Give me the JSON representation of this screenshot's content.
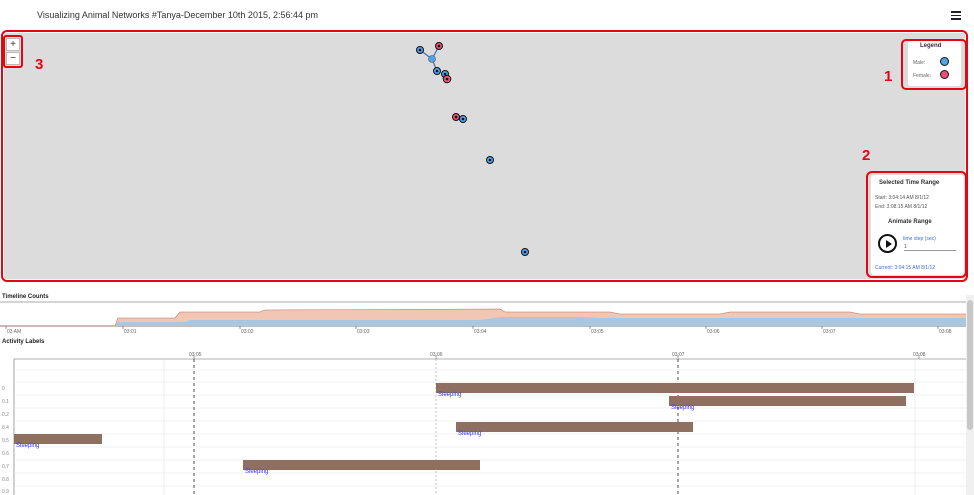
{
  "header": {
    "title": "Visualizing Animal Networks #Tanya-December 10th 2015, 2:56:44 pm",
    "menu_icon": "hamburger-icon"
  },
  "map": {
    "zoom_in_label": "+",
    "zoom_out_label": "−",
    "callouts": [
      "1",
      "2",
      "3"
    ],
    "legend": {
      "title": "Legend",
      "male_label": "Male:",
      "female_label": "Female:",
      "male_color": "#4fa3e8",
      "female_color": "#e8507a"
    },
    "time_range": {
      "title": "Selected Time Range",
      "start": "Start:  3:04:14 AM 8/1/12",
      "end": "End:    3:08:15 AM 8/1/12",
      "animate_title": "Animate Range",
      "timestep_label": "time step (sec)",
      "timestep_value": "1",
      "current": "Current:  3:04:15 AM 8/1/12"
    }
  },
  "timeline": {
    "title": "Timeline Counts",
    "ticks": [
      "03 AM",
      "03:01",
      "03:02",
      "03:03",
      "03:04",
      "03:05",
      "03:06",
      "03:07",
      "03:08"
    ]
  },
  "activity": {
    "title": "Activity Labels",
    "ticks": [
      "03:05",
      "03:06",
      "03:07",
      "03:08"
    ],
    "rows": [
      "0",
      "0.1",
      "0.2",
      "0.4",
      "0.5",
      "0.6",
      "0.7",
      "0.8",
      "0.9"
    ],
    "bars": [
      {
        "label": "Sleeping"
      },
      {
        "label": "Sleeping"
      },
      {
        "label": "Sleeping"
      },
      {
        "label": "Sleeping"
      },
      {
        "label": "Sleeping"
      }
    ]
  }
}
